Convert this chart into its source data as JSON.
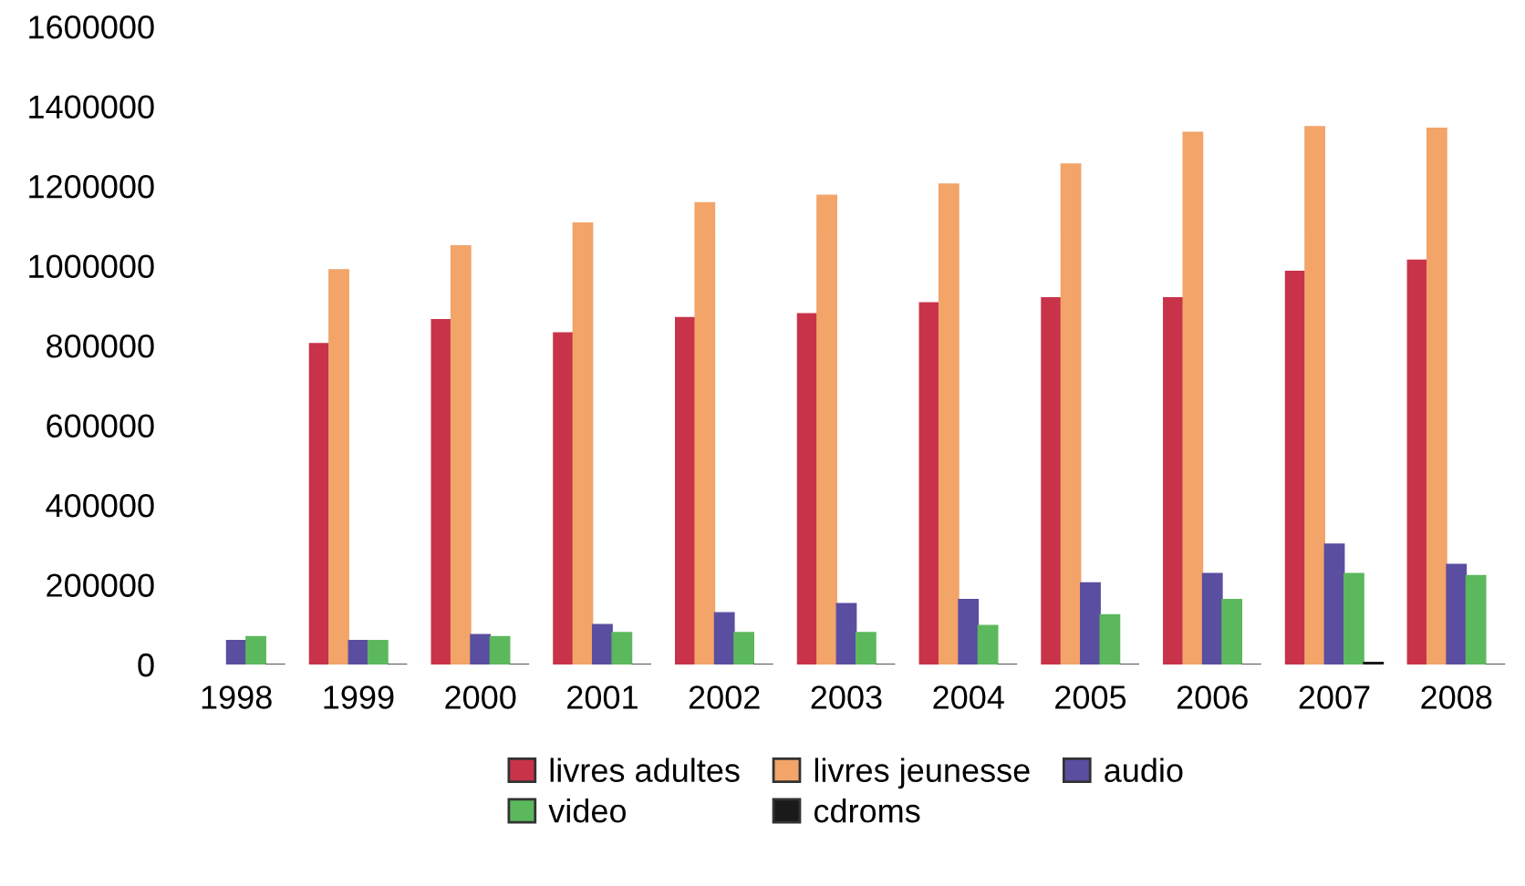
{
  "chart_data": {
    "type": "bar",
    "categories": [
      "1998",
      "1999",
      "2000",
      "2001",
      "2002",
      "2003",
      "2004",
      "2005",
      "2006",
      "2007",
      "2008"
    ],
    "series": [
      {
        "name": "livres adultes",
        "color": "#c8334a",
        "values": [
          null,
          805000,
          865000,
          832000,
          870000,
          880000,
          907000,
          920000,
          920000,
          986000,
          1014000
        ]
      },
      {
        "name": "livres jeunesse",
        "color": "#f2a469",
        "values": [
          null,
          990000,
          1050000,
          1107000,
          1158000,
          1177000,
          1205000,
          1255000,
          1335000,
          1349000,
          1345000
        ]
      },
      {
        "name": "audio",
        "color": "#5a4ea0",
        "values": [
          60000,
          60000,
          75000,
          100000,
          130000,
          153000,
          163000,
          205000,
          228000,
          302000,
          251000
        ]
      },
      {
        "name": "video",
        "color": "#5cb85c",
        "values": [
          70000,
          60000,
          70000,
          80000,
          80000,
          80000,
          98000,
          125000,
          163000,
          228000,
          223000
        ]
      },
      {
        "name": "cdroms",
        "color": "#1a1a1a",
        "values": [
          0,
          0,
          0,
          0,
          0,
          0,
          0,
          0,
          0,
          5000,
          0
        ]
      }
    ],
    "ylim": [
      0,
      1600000
    ],
    "yticks": [
      0,
      200000,
      400000,
      600000,
      800000,
      1000000,
      1200000,
      1400000,
      1600000
    ],
    "legend": "bottom",
    "grid": false
  }
}
